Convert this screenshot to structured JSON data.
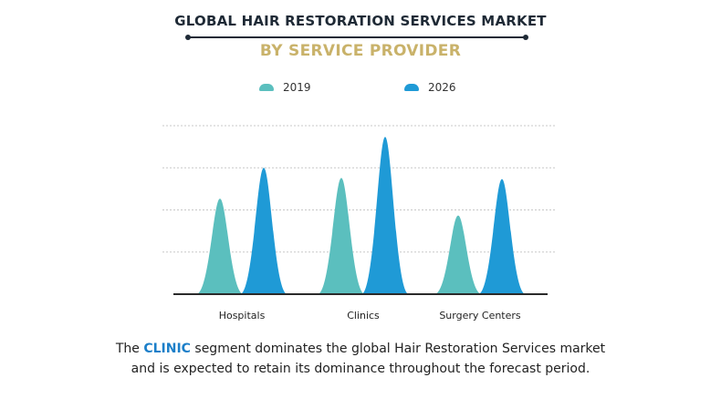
{
  "title": "GLOBAL HAIR RESTORATION SERVICES MARKET",
  "subtitle": "BY SERVICE PROVIDER",
  "legend": [
    {
      "label": "2019",
      "color": "#5bbfbe"
    },
    {
      "label": "2026",
      "color": "#1f9ad6"
    }
  ],
  "chart_data": {
    "type": "area",
    "categories": [
      "Hospitals",
      "Clinics",
      "Surgery Centers"
    ],
    "series": [
      {
        "name": "2019",
        "values": [
          1.7,
          2.07,
          1.4
        ]
      },
      {
        "name": "2026",
        "values": [
          2.25,
          2.8,
          2.05
        ]
      }
    ],
    "ylim": [
      0,
      3.0
    ],
    "grid": true,
    "legend_position": "top"
  },
  "footer": {
    "prefix": "The ",
    "highlight": "CLINIC",
    "line1_rest": " segment dominates the global Hair Restoration Services market",
    "line2": "and is expected to retain its dominance throughout the forecast period."
  }
}
